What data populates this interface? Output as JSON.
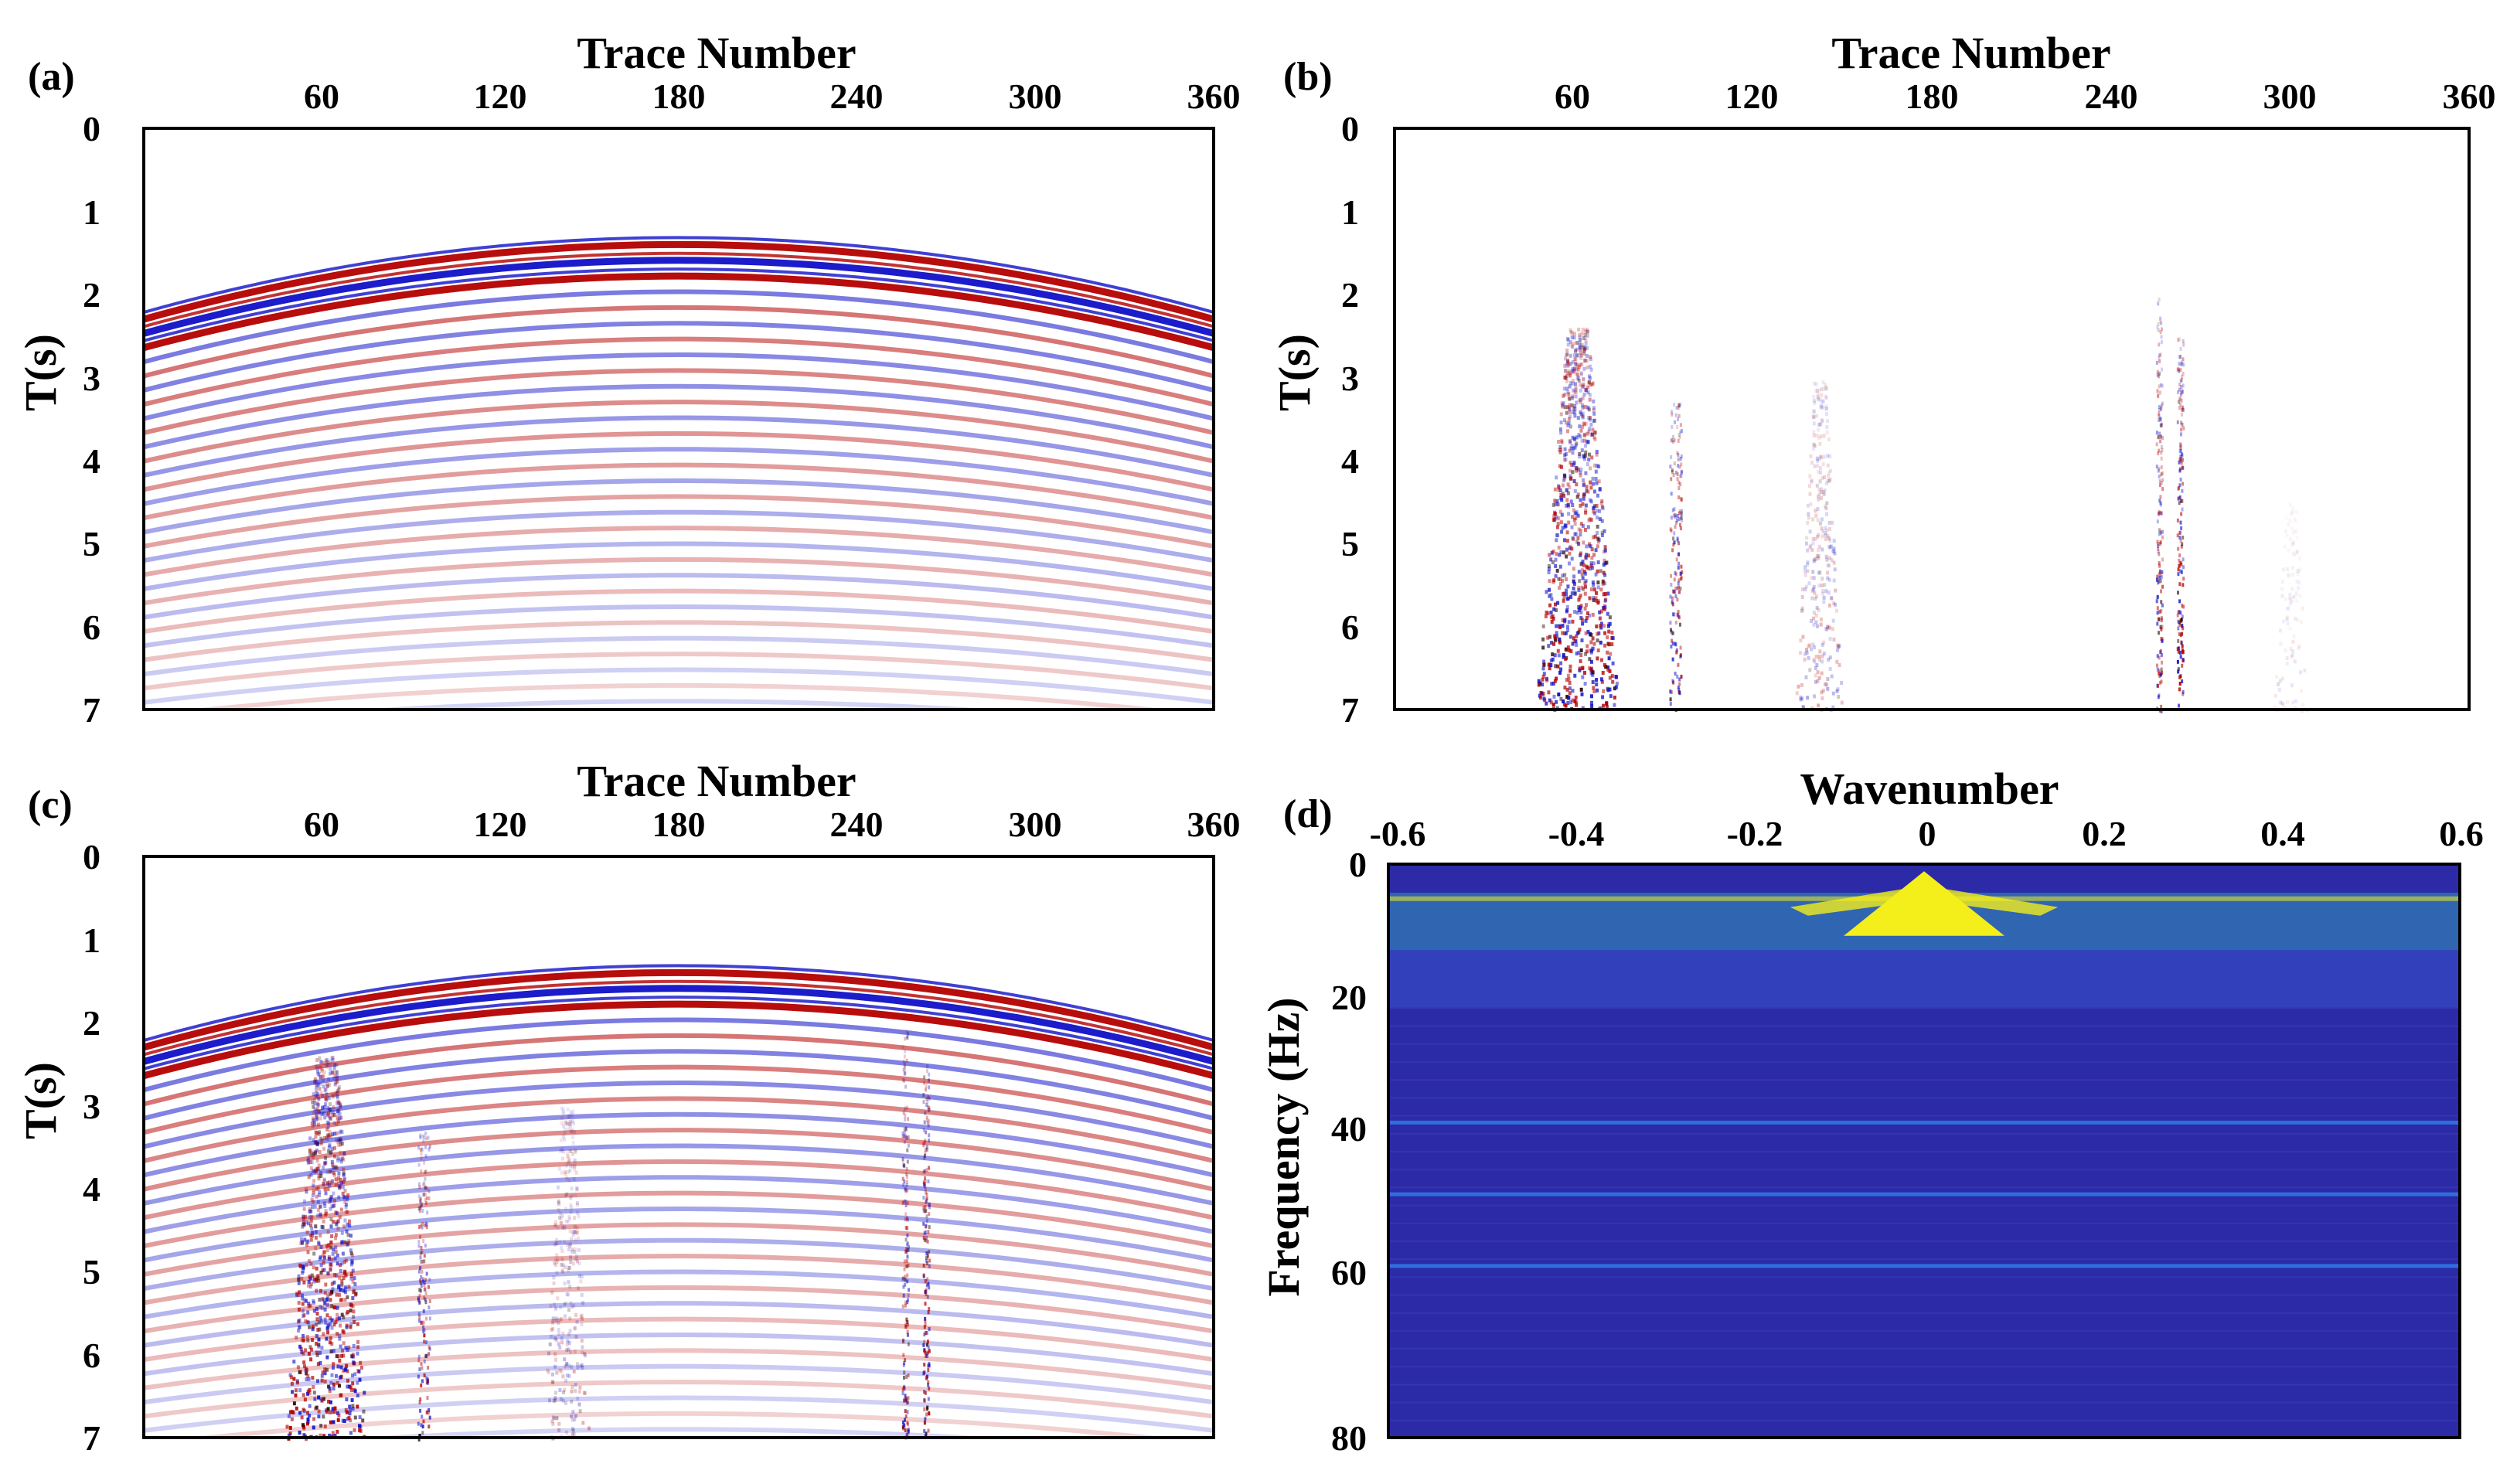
{
  "figure": {
    "panels": [
      "(a)",
      "(b)",
      "(c)",
      "(d)"
    ]
  },
  "colors": {
    "seismic_red": "#b40000",
    "seismic_blue": "#1010c8",
    "fk_background": "#2c2aa6",
    "fk_yellow": "#f4ee1a",
    "fk_cyan": "#3ad3c8"
  },
  "chart_data": [
    {
      "id": "a",
      "label": "(a)",
      "type": "heatmap",
      "title": "",
      "xlabel": "Trace Number",
      "ylabel": "T(s)",
      "xlim": [
        0,
        360
      ],
      "ylim": [
        0,
        7
      ],
      "xticks": [
        60,
        120,
        180,
        240,
        300,
        360
      ],
      "yticks": [
        0,
        1,
        2,
        3,
        4,
        5,
        6,
        7
      ],
      "events": {
        "apex_trace": 180,
        "apex_time_s": 1.4,
        "edge_time_s": 2.3,
        "reflection_count": 30,
        "last_reflection_apex_s": 6.9
      },
      "noise_bursts": []
    },
    {
      "id": "b",
      "label": "(b)",
      "type": "heatmap",
      "title": "",
      "xlabel": "Trace Number",
      "ylabel": "T(s)",
      "xlim": [
        0,
        360
      ],
      "ylim": [
        0,
        7
      ],
      "xticks": [
        60,
        120,
        180,
        240,
        300,
        360
      ],
      "yticks": [
        0,
        1,
        2,
        3,
        4,
        5,
        6,
        7
      ],
      "events": null,
      "noise_bursts": [
        {
          "trace_center": 61,
          "trace_halfwidth": 14,
          "t_start": 2.4,
          "strength": 1.0,
          "kind": "cone"
        },
        {
          "trace_center": 94,
          "trace_halfwidth": 2,
          "t_start": 3.3,
          "strength": 0.9,
          "kind": "spike"
        },
        {
          "trace_center": 142,
          "trace_halfwidth": 8,
          "t_start": 3.0,
          "strength": 0.35,
          "kind": "cone"
        },
        {
          "trace_center": 256,
          "trace_halfwidth": 1,
          "t_start": 2.0,
          "strength": 0.8,
          "kind": "spike"
        },
        {
          "trace_center": 263,
          "trace_halfwidth": 1,
          "t_start": 2.5,
          "strength": 1.0,
          "kind": "spike"
        },
        {
          "trace_center": 300,
          "trace_halfwidth": 6,
          "t_start": 4.5,
          "strength": 0.12,
          "kind": "cone"
        }
      ]
    },
    {
      "id": "c",
      "label": "(c)",
      "type": "heatmap",
      "title": "",
      "xlabel": "Trace Number",
      "ylabel": "T(s)",
      "xlim": [
        0,
        360
      ],
      "ylim": [
        0,
        7
      ],
      "xticks": [
        60,
        120,
        180,
        240,
        300,
        360
      ],
      "yticks": [
        0,
        1,
        2,
        3,
        4,
        5,
        6,
        7
      ],
      "events": {
        "apex_trace": 180,
        "apex_time_s": 1.4,
        "edge_time_s": 2.3,
        "reflection_count": 30,
        "last_reflection_apex_s": 6.9
      },
      "noise_bursts": [
        {
          "trace_center": 61,
          "trace_halfwidth": 14,
          "t_start": 2.4,
          "strength": 1.0,
          "kind": "cone"
        },
        {
          "trace_center": 94,
          "trace_halfwidth": 2,
          "t_start": 3.3,
          "strength": 0.9,
          "kind": "spike"
        },
        {
          "trace_center": 142,
          "trace_halfwidth": 8,
          "t_start": 3.0,
          "strength": 0.35,
          "kind": "cone"
        },
        {
          "trace_center": 256,
          "trace_halfwidth": 1,
          "t_start": 2.0,
          "strength": 0.8,
          "kind": "spike"
        },
        {
          "trace_center": 263,
          "trace_halfwidth": 1,
          "t_start": 2.5,
          "strength": 1.0,
          "kind": "spike"
        }
      ]
    },
    {
      "id": "d",
      "label": "(d)",
      "type": "heatmap",
      "title": "",
      "xlabel": "Wavenumber",
      "ylabel": "Frequency (Hz)",
      "xlim": [
        -0.6,
        0.6
      ],
      "ylim": [
        0,
        80
      ],
      "xticks": [
        -0.6,
        -0.4,
        -0.2,
        0,
        0.2,
        0.4,
        0.6
      ],
      "xtick_labels": [
        "-0.6",
        "-0.4",
        "-0.2",
        "0",
        "0.2",
        "0.4",
        "0.6"
      ],
      "yticks": [
        0,
        20,
        40,
        60,
        80
      ],
      "energy": {
        "peak_wavenumber": 0,
        "peak_freq_range_hz": [
          1,
          10
        ],
        "bright_band_hz": [
          4,
          12
        ],
        "lines_hz": [
          36,
          46,
          56
        ]
      }
    }
  ]
}
